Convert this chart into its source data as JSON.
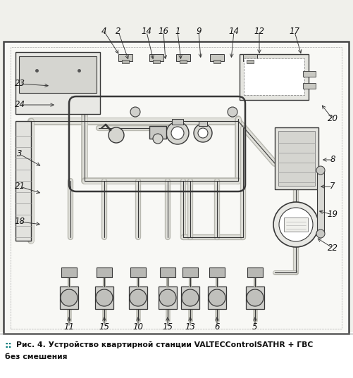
{
  "title_line1": "Рис. 4. Устройство квартирной станции VALTECControlSATHR + ГВС",
  "title_line2": "без смешения",
  "bg_outer": "#f0f0eb",
  "bg_panel": "#ffffff",
  "line_color": "#383838",
  "pipe_fill": "#d8d8d2",
  "component_fill": "#d0d0c8",
  "accent_color": "#007878",
  "top_labels": [
    [
      "4",
      148,
      492,
      170,
      458
    ],
    [
      "2",
      168,
      492,
      183,
      450
    ],
    [
      "14",
      208,
      492,
      218,
      450
    ],
    [
      "16",
      232,
      492,
      235,
      450
    ],
    [
      "1",
      252,
      492,
      257,
      450
    ],
    [
      "9",
      282,
      492,
      285,
      452
    ],
    [
      "14",
      332,
      492,
      328,
      452
    ],
    [
      "12",
      368,
      492,
      368,
      458
    ],
    [
      "17",
      418,
      492,
      428,
      458
    ]
  ],
  "left_labels": [
    [
      "23",
      28,
      418,
      72,
      415
    ],
    [
      "24",
      28,
      388,
      80,
      388
    ],
    [
      "3",
      28,
      318,
      60,
      300
    ],
    [
      "21",
      28,
      272,
      60,
      262
    ],
    [
      "18",
      28,
      222,
      60,
      218
    ]
  ],
  "right_labels": [
    [
      "20",
      472,
      368,
      455,
      390
    ],
    [
      "8",
      472,
      310,
      455,
      310
    ],
    [
      "7",
      472,
      272,
      452,
      272
    ],
    [
      "19",
      472,
      232,
      450,
      238
    ],
    [
      "22",
      472,
      185,
      448,
      200
    ]
  ],
  "bottom_labels": [
    [
      "11",
      98,
      72,
      98,
      90
    ],
    [
      "15",
      148,
      72,
      148,
      90
    ],
    [
      "10",
      196,
      72,
      196,
      90
    ],
    [
      "15",
      238,
      72,
      238,
      90
    ],
    [
      "13",
      270,
      72,
      270,
      90
    ],
    [
      "6",
      308,
      72,
      308,
      90
    ],
    [
      "5",
      362,
      72,
      362,
      90
    ]
  ]
}
